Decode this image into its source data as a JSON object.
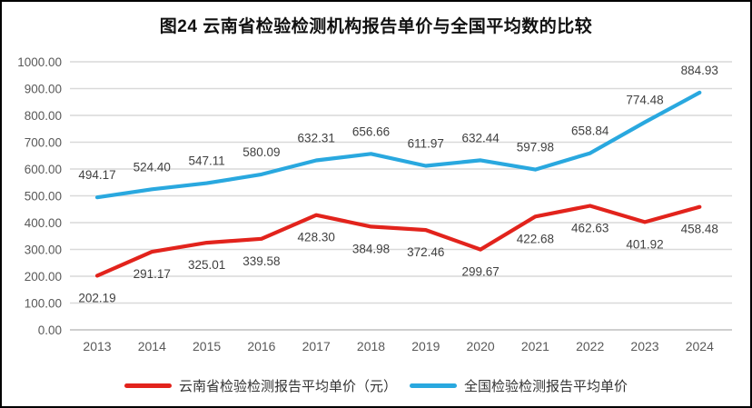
{
  "title": "图24 云南省检验检测机构报告单价与全国平均数的比较",
  "chart_data": {
    "type": "line",
    "categories": [
      "2013",
      "2014",
      "2015",
      "2016",
      "2017",
      "2018",
      "2019",
      "2020",
      "2021",
      "2022",
      "2023",
      "2024"
    ],
    "series": [
      {
        "name": "云南省检验检测报告平均单价（元）",
        "color": "#e2231c",
        "label_side": "below",
        "values": [
          202.19,
          291.17,
          325.01,
          339.58,
          428.3,
          384.98,
          372.46,
          299.67,
          422.68,
          462.63,
          401.92,
          458.48
        ]
      },
      {
        "name": "全国检验检测报告平均单价",
        "color": "#29a8df",
        "label_side": "above",
        "values": [
          494.17,
          524.4,
          547.11,
          580.09,
          632.31,
          656.66,
          611.97,
          632.44,
          597.98,
          658.84,
          774.48,
          884.93
        ]
      }
    ],
    "ylim": [
      0,
      1000
    ],
    "ytick_step": 100,
    "ytick_labels": [
      "0.00",
      "100.00",
      "200.00",
      "300.00",
      "400.00",
      "500.00",
      "600.00",
      "700.00",
      "800.00",
      "900.00",
      "1000.00"
    ],
    "grid": true,
    "legend_position": "bottom",
    "data_labels_shown": true
  },
  "colors": {
    "grid": "#d9d9d9",
    "baseline": "#bfbfbf",
    "axis_text": "#595959",
    "data_label_text": "#404040",
    "border": "#000000"
  }
}
